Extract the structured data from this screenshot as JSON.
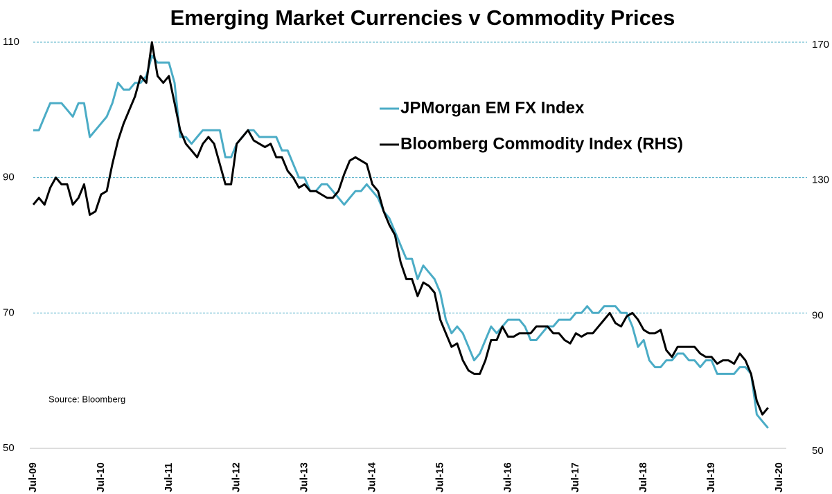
{
  "chart_data": {
    "type": "line",
    "title": "Emerging Market Currencies v Commodity Prices",
    "annotation": "Source: Bloomberg",
    "categories": [
      "Jul-09",
      null,
      null,
      null,
      null,
      null,
      null,
      null,
      null,
      null,
      null,
      null,
      "Jul-10",
      null,
      null,
      null,
      null,
      null,
      null,
      null,
      null,
      null,
      null,
      null,
      "Jul-11",
      null,
      null,
      null,
      null,
      null,
      null,
      null,
      null,
      null,
      null,
      null,
      "Jul-12",
      null,
      null,
      null,
      null,
      null,
      null,
      null,
      null,
      null,
      null,
      null,
      "Jul-13",
      null,
      null,
      null,
      null,
      null,
      null,
      null,
      null,
      null,
      null,
      null,
      "Jul-14",
      null,
      null,
      null,
      null,
      null,
      null,
      null,
      null,
      null,
      null,
      null,
      "Jul-15",
      null,
      null,
      null,
      null,
      null,
      null,
      null,
      null,
      null,
      null,
      null,
      "Jul-16",
      null,
      null,
      null,
      null,
      null,
      null,
      null,
      null,
      null,
      null,
      null,
      "Jul-17",
      null,
      null,
      null,
      null,
      null,
      null,
      null,
      null,
      null,
      null,
      null,
      "Jul-18",
      null,
      null,
      null,
      null,
      null,
      null,
      null,
      null,
      null,
      null,
      null,
      "Jul-19",
      null,
      null,
      null,
      null,
      null,
      null,
      null,
      null,
      null,
      null,
      null,
      "Jul-20"
    ],
    "series": [
      {
        "name": "JPMorgan EM FX Index",
        "color": "#4bacc6",
        "axis": "y",
        "values": [
          97,
          97,
          99,
          101,
          101,
          101,
          100,
          99,
          101,
          101,
          96,
          97,
          98,
          99,
          101,
          104,
          103,
          103,
          104,
          104,
          105,
          108,
          107,
          107,
          107,
          104,
          96,
          96,
          95,
          96,
          97,
          97,
          97,
          97,
          93,
          93,
          95,
          96,
          97,
          97,
          96,
          96,
          96,
          96,
          94,
          94,
          92,
          90,
          90,
          88,
          88,
          89,
          89,
          88,
          87,
          86,
          87,
          88,
          88,
          89,
          88,
          87,
          85,
          84,
          82,
          80,
          78,
          78,
          75,
          77,
          76,
          75,
          73,
          69,
          67,
          68,
          67,
          65,
          63,
          64,
          66,
          68,
          67,
          68,
          69,
          69,
          69,
          68,
          66,
          66,
          67,
          68,
          68,
          69,
          69,
          69,
          70,
          70,
          71,
          70,
          70,
          71,
          71,
          71,
          70,
          70,
          68,
          65,
          66,
          63,
          62,
          62,
          63,
          63,
          64,
          64,
          63,
          63,
          62,
          63,
          63,
          61,
          61,
          61,
          61,
          62,
          62,
          61,
          55,
          54,
          53,
          null,
          null
        ]
      },
      {
        "name": "Bloomberg Commodity Index (RHS)",
        "color": "#000000",
        "axis": "y2",
        "values": [
          122,
          124,
          122,
          127,
          130,
          128,
          128,
          122,
          124,
          128,
          119,
          120,
          125,
          126,
          134,
          141,
          146,
          150,
          154,
          160,
          158,
          170,
          160,
          158,
          160,
          152,
          144,
          140,
          138,
          136,
          140,
          142,
          140,
          134,
          128,
          128,
          140,
          142,
          144,
          141,
          140,
          139,
          140,
          136,
          136,
          132,
          130,
          127,
          128,
          126,
          126,
          125,
          124,
          124,
          126,
          131,
          135,
          136,
          135,
          134,
          128,
          126,
          120,
          116,
          113,
          105,
          100,
          100,
          95,
          99,
          98,
          96,
          88,
          84,
          80,
          81,
          76,
          73,
          72,
          72,
          76,
          82,
          82,
          86,
          83,
          83,
          84,
          84,
          84,
          86,
          86,
          86,
          84,
          84,
          82,
          81,
          84,
          83,
          84,
          84,
          86,
          88,
          90,
          87,
          86,
          89,
          90,
          88,
          85,
          84,
          84,
          85,
          79,
          77,
          80,
          80,
          80,
          80,
          78,
          77,
          77,
          75,
          76,
          76,
          75,
          78,
          76,
          72,
          64,
          60,
          62,
          null,
          null
        ]
      }
    ],
    "ylim": [
      50,
      110
    ],
    "yticks": [
      50,
      70,
      90,
      110
    ],
    "y2lim": [
      50,
      170
    ],
    "y2ticks": [
      50,
      90,
      130,
      170
    ],
    "grid": true
  }
}
